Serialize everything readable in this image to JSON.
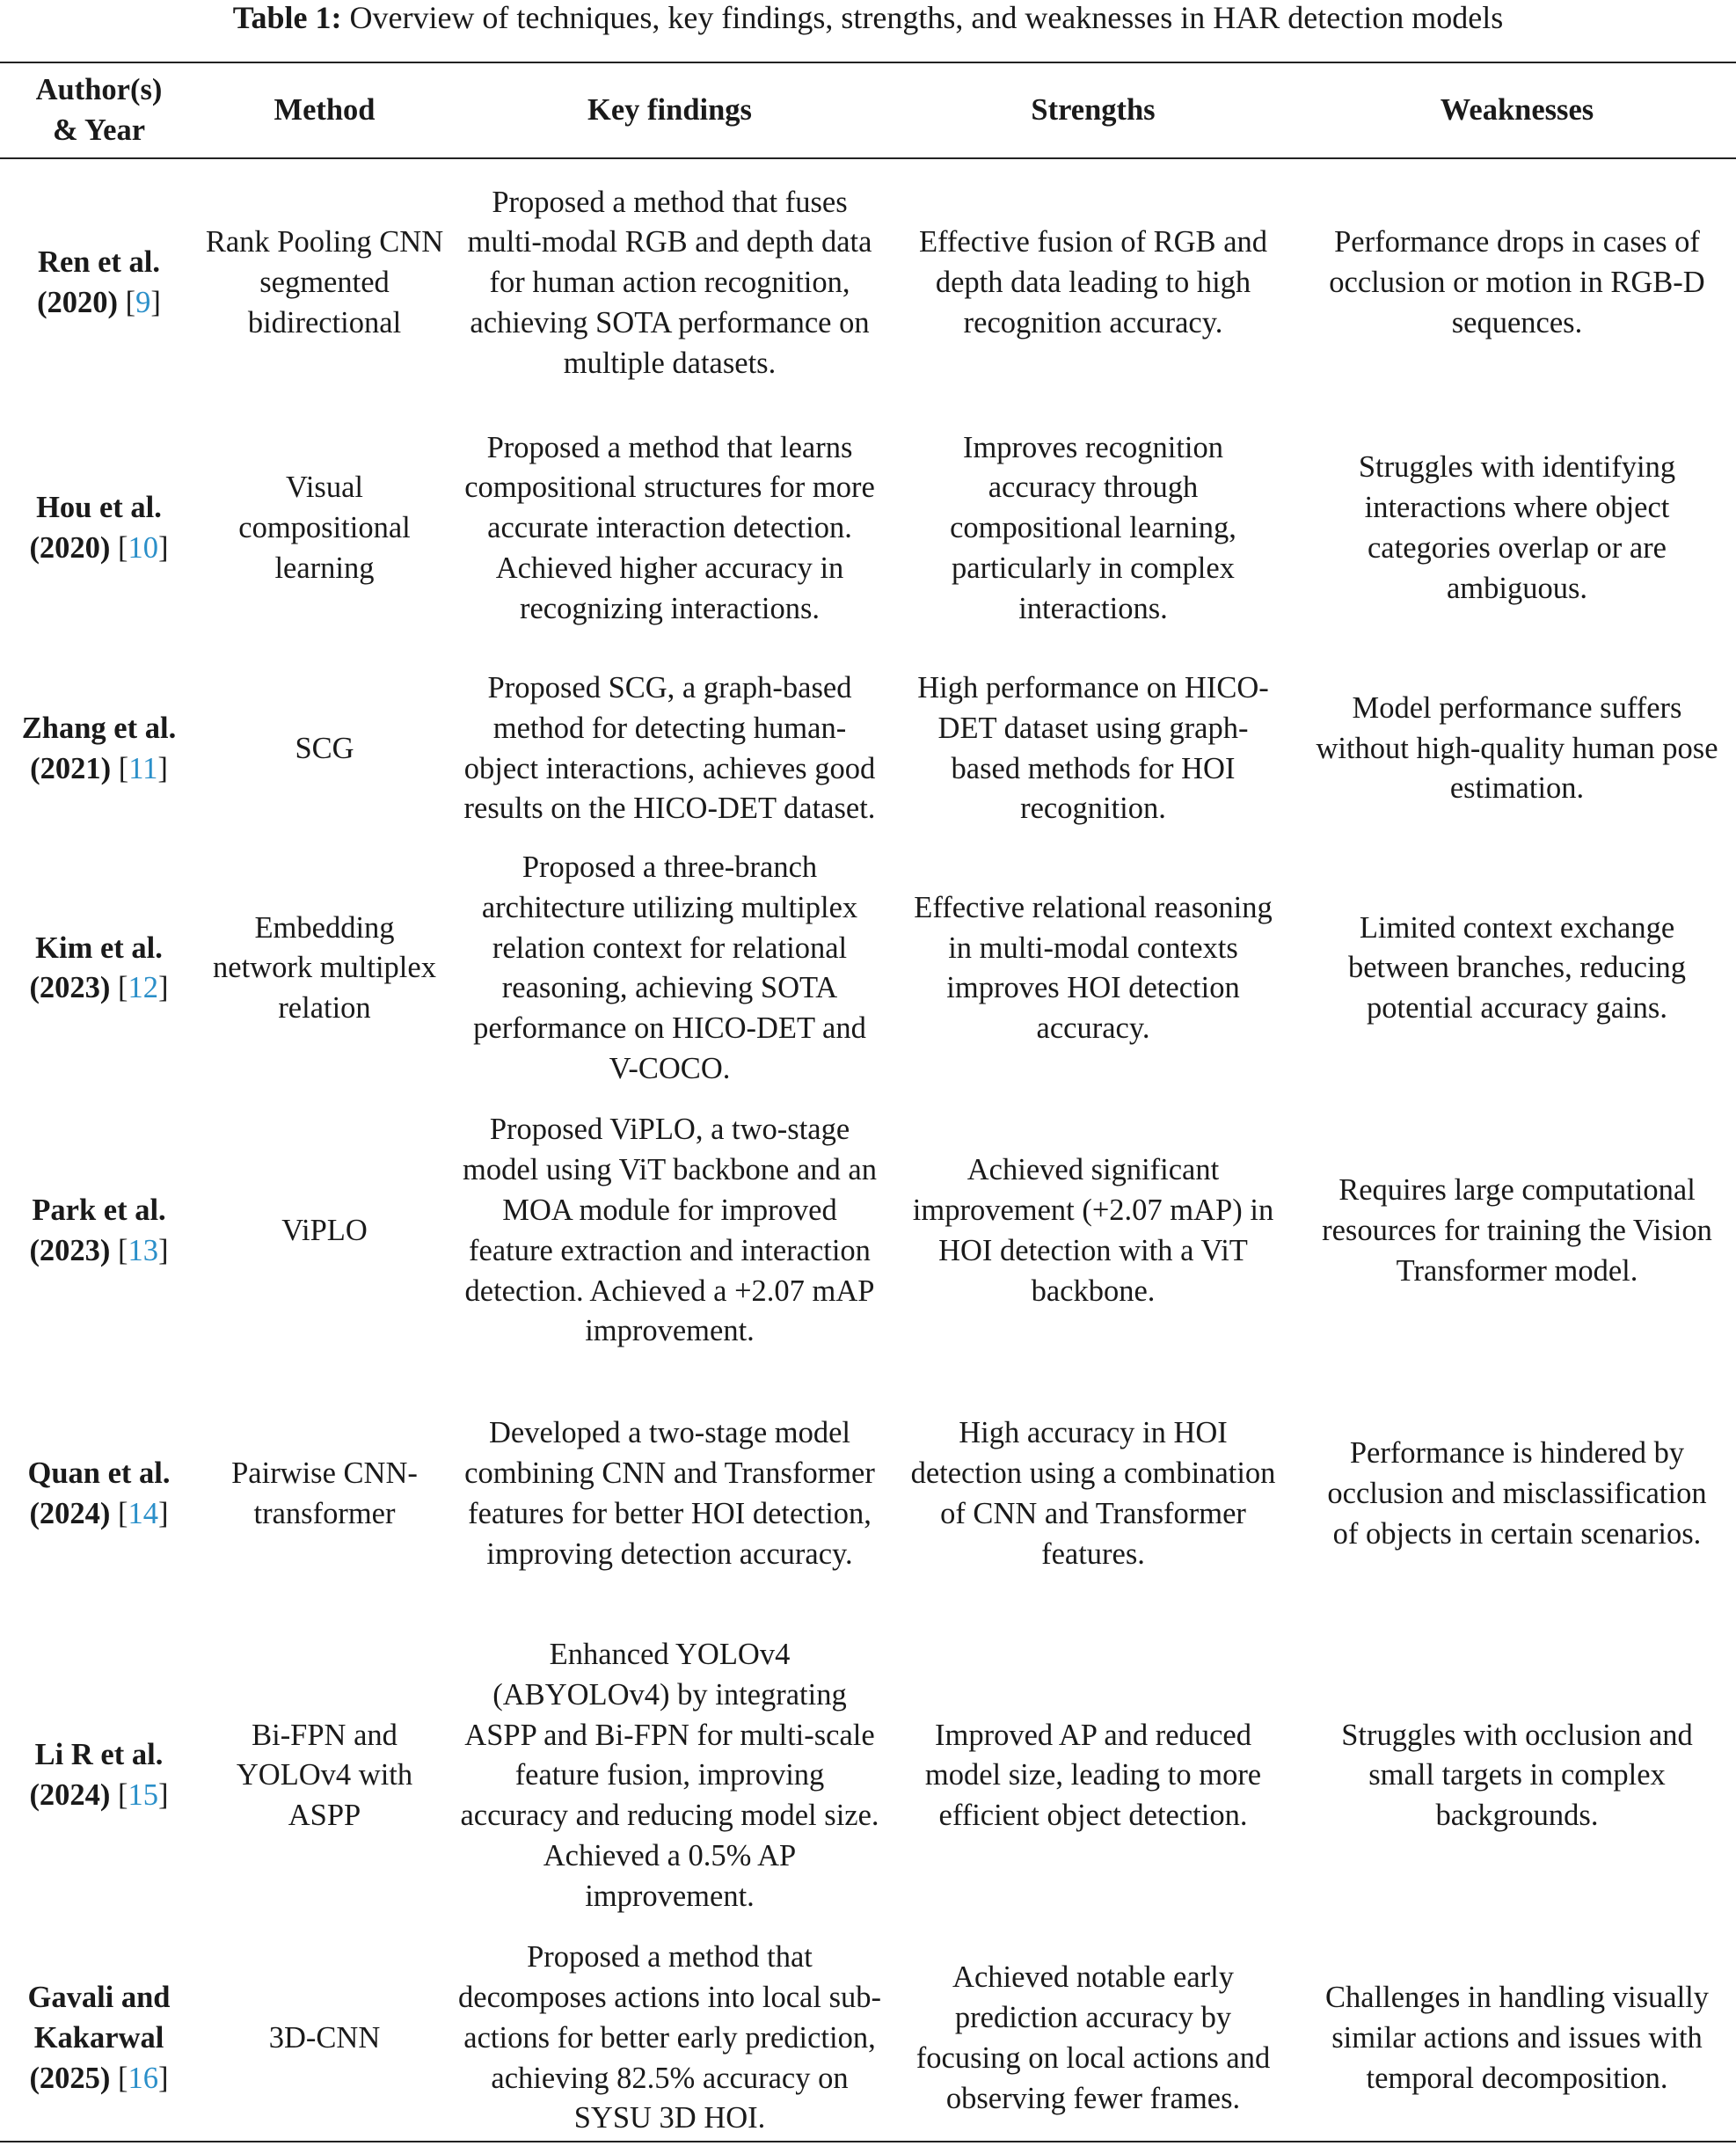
{
  "caption": {
    "label": "Table 1:",
    "text": "Overview of techniques, key findings, strengths, and weaknesses in HAR detection models"
  },
  "headers": [
    "Author(s) & Year",
    "Method",
    "Key findings",
    "Strengths",
    "Weaknesses"
  ],
  "link_color": "#2a8fc9",
  "rows": [
    {
      "author": "Ren et al. (2020)",
      "ref": "9",
      "method": "Rank Pooling CNN segmented bidirectional",
      "findings": "Proposed a method that fuses multi-modal RGB and depth data for human action recognition, achieving SOTA performance on multiple datasets.",
      "strengths": "Effective fusion of RGB and depth data leading to high recognition accuracy.",
      "weaknesses": "Performance drops in cases of occlusion or motion in RGB-D sequences."
    },
    {
      "author": "Hou et al. (2020)",
      "ref": "10",
      "method": "Visual compositional learning",
      "findings": "Proposed a method that learns compositional structures for more accurate interaction detection. Achieved higher accuracy in recognizing interactions.",
      "strengths": "Improves recognition accuracy through compositional learning, particularly in complex interactions.",
      "weaknesses": "Struggles with identifying interactions where object categories overlap or are ambiguous."
    },
    {
      "author": "Zhang et al. (2021)",
      "ref": "11",
      "method": "SCG",
      "findings": "Proposed SCG, a graph-based method for detecting human-object interactions, achieves good results on the HICO-DET dataset.",
      "strengths": "High performance on HICO-DET dataset using graph-based methods for HOI recognition.",
      "weaknesses": "Model performance suffers without high-quality human pose estimation."
    },
    {
      "author": "Kim et al. (2023)",
      "ref": "12",
      "method": "Embedding network multiplex relation",
      "findings": "Proposed a three-branch architecture utilizing multiplex relation context for relational reasoning, achieving SOTA performance on HICO-DET and V-COCO.",
      "strengths": "Effective relational reasoning in multi-modal contexts improves HOI detection accuracy.",
      "weaknesses": "Limited context exchange between branches, reducing potential accuracy gains."
    },
    {
      "author": "Park et al. (2023)",
      "ref": "13",
      "method": "ViPLO",
      "findings": "Proposed ViPLO, a two-stage model using ViT backbone and an MOA module for improved feature extraction and interaction detection. Achieved a +2.07 mAP improvement.",
      "strengths": "Achieved significant improvement (+2.07 mAP) in HOI detection with a ViT backbone.",
      "weaknesses": "Requires large computational resources for training the Vision Transformer model."
    },
    {
      "author": "Quan et al. (2024)",
      "ref": "14",
      "method": "Pairwise CNN-transformer",
      "findings": "Developed a two-stage model combining CNN and Transformer features for better HOI detection, improving detection accuracy.",
      "strengths": "High accuracy in HOI detection using a combination of CNN and Transformer features.",
      "weaknesses": "Performance is hindered by occlusion and misclassification of objects in certain scenarios."
    },
    {
      "author": "Li R et al. (2024)",
      "ref": "15",
      "method": "Bi-FPN and YOLOv4 with ASPP",
      "findings": "Enhanced YOLOv4 (ABYOLOv4) by integrating ASPP and Bi-FPN for multi-scale feature fusion, improving accuracy and reducing model size. Achieved a 0.5% AP improvement.",
      "strengths": "Improved AP and reduced model size, leading to more efficient object detection.",
      "weaknesses": "Struggles with occlusion and small targets in complex backgrounds."
    },
    {
      "author": "Gavali and Kakarwal (2025)",
      "ref": "16",
      "method": "3D-CNN",
      "findings": "Proposed a method that decomposes actions into local sub-actions for better early prediction, achieving 82.5% accuracy on SYSU 3D HOI.",
      "strengths": "Achieved notable early prediction accuracy by focusing on local actions and observing fewer frames.",
      "weaknesses": "Challenges in handling visually similar actions and issues with temporal decomposition."
    }
  ]
}
